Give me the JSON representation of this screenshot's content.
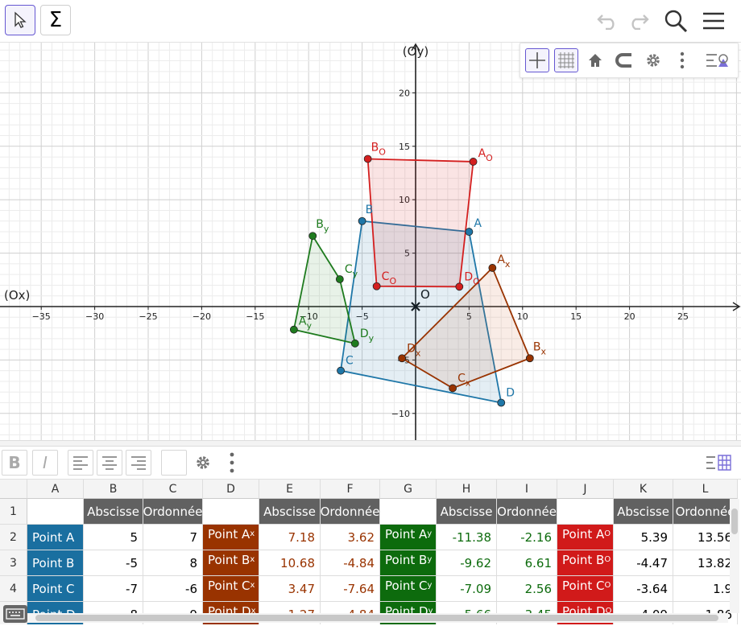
{
  "toolbar": {
    "sum_symbol": "Σ",
    "icons": [
      "cursor-icon",
      "sigma-icon",
      "undo-icon",
      "redo-icon",
      "search-icon",
      "menu-icon"
    ]
  },
  "graphics": {
    "x_axis_label": "(Ox)",
    "y_axis_label": "(Oy)",
    "origin_label": "O",
    "x_ticks": [
      -35,
      -30,
      -25,
      -20,
      -15,
      -10,
      -5,
      0,
      5,
      10,
      15,
      20,
      25
    ],
    "y_ticks": [
      -10,
      -5,
      5,
      10,
      15,
      20
    ],
    "xlim": [
      -39,
      30
    ],
    "ylim": [
      -12.5,
      25
    ],
    "polygons": [
      {
        "name": "ABCD",
        "color": "#1f77a8",
        "fill": "rgba(31,119,168,0.12)",
        "points": [
          {
            "label": "A",
            "sub": "",
            "x": 5,
            "y": 7
          },
          {
            "label": "B",
            "sub": "",
            "x": -5,
            "y": 8
          },
          {
            "label": "C",
            "sub": "",
            "x": -7,
            "y": -6
          },
          {
            "label": "D",
            "sub": "",
            "x": 8,
            "y": -9
          }
        ]
      },
      {
        "name": "AxBxCxDx",
        "color": "#993300",
        "fill": "rgba(204,102,51,0.12)",
        "points": [
          {
            "label": "A",
            "sub": "x",
            "x": 7.18,
            "y": 3.62
          },
          {
            "label": "B",
            "sub": "x",
            "x": 10.68,
            "y": -4.84
          },
          {
            "label": "C",
            "sub": "x",
            "x": 3.47,
            "y": -7.64
          },
          {
            "label": "D",
            "sub": "x",
            "x": -1.27,
            "y": -4.84
          }
        ]
      },
      {
        "name": "AyByCyDy",
        "color": "#1e7b1e",
        "fill": "rgba(30,123,30,0.10)",
        "points": [
          {
            "label": "A",
            "sub": "y",
            "x": -11.38,
            "y": -2.16
          },
          {
            "label": "B",
            "sub": "y",
            "x": -9.62,
            "y": 6.61
          },
          {
            "label": "C",
            "sub": "y",
            "x": -7.09,
            "y": 2.56
          },
          {
            "label": "D",
            "sub": "y",
            "x": -5.66,
            "y": -3.45
          }
        ]
      },
      {
        "name": "AoBoCoDo",
        "color": "#d41f1f",
        "fill": "rgba(212,31,31,0.12)",
        "points": [
          {
            "label": "A",
            "sub": "O",
            "x": 5.39,
            "y": 13.56
          },
          {
            "label": "B",
            "sub": "O",
            "x": -4.47,
            "y": 13.82
          },
          {
            "label": "C",
            "sub": "O",
            "x": -3.64,
            "y": 1.9
          },
          {
            "label": "D",
            "sub": "O",
            "x": 4.09,
            "y": 1.86
          }
        ]
      }
    ]
  },
  "spreadsheet": {
    "columns": [
      "A",
      "B",
      "C",
      "D",
      "E",
      "F",
      "G",
      "H",
      "I",
      "J",
      "K",
      "L"
    ],
    "rows": [
      "1",
      "2",
      "3",
      "4",
      "5"
    ],
    "header_row": [
      "",
      "Abscisse",
      "Ordonnée",
      "",
      "Abscisse",
      "Ordonnée",
      "",
      "Abscisse",
      "Ordonnée",
      "",
      "Abscisse",
      "Ordonnée"
    ],
    "data": [
      {
        "a": "Point A",
        "b": "5",
        "c": "7",
        "d": "Point A",
        "d_sub": "x",
        "e": "7.18",
        "f": "3.62",
        "g": "Point A",
        "g_sub": "y",
        "h": "-11.38",
        "i": "-2.16",
        "j": "Point A",
        "j_sub": "O",
        "k": "5.39",
        "l": "13.56"
      },
      {
        "a": "Point B",
        "b": "-5",
        "c": "8",
        "d": "Point B",
        "d_sub": "x",
        "e": "10.68",
        "f": "-4.84",
        "g": "Point B",
        "g_sub": "y",
        "h": "-9.62",
        "i": "6.61",
        "j": "Point B",
        "j_sub": "O",
        "k": "-4.47",
        "l": "13.82"
      },
      {
        "a": "Point C",
        "b": "-7",
        "c": "-6",
        "d": "Point C",
        "d_sub": "x",
        "e": "3.47",
        "f": "-7.64",
        "g": "Point C",
        "g_sub": "y",
        "h": "-7.09",
        "i": "2.56",
        "j": "Point C",
        "j_sub": "O",
        "k": "-3.64",
        "l": "1.9"
      },
      {
        "a": "Point D",
        "b": "8",
        "c": "-9",
        "d": "Point D",
        "d_sub": "x",
        "e": "-1.27",
        "f": "-4.84",
        "g": "Point D",
        "g_sub": "y",
        "h": "-5.66",
        "i": "-3.45",
        "j": "Point D",
        "j_sub": "O",
        "k": "4.09",
        "l": "1.86"
      }
    ],
    "colors": {
      "blue": "#1a6fa0",
      "brown": "#993300",
      "green": "#0d6b0d",
      "red": "#d11a1a",
      "header": "#616161"
    }
  },
  "stylebar": {
    "bold": "B",
    "italic": "I"
  }
}
